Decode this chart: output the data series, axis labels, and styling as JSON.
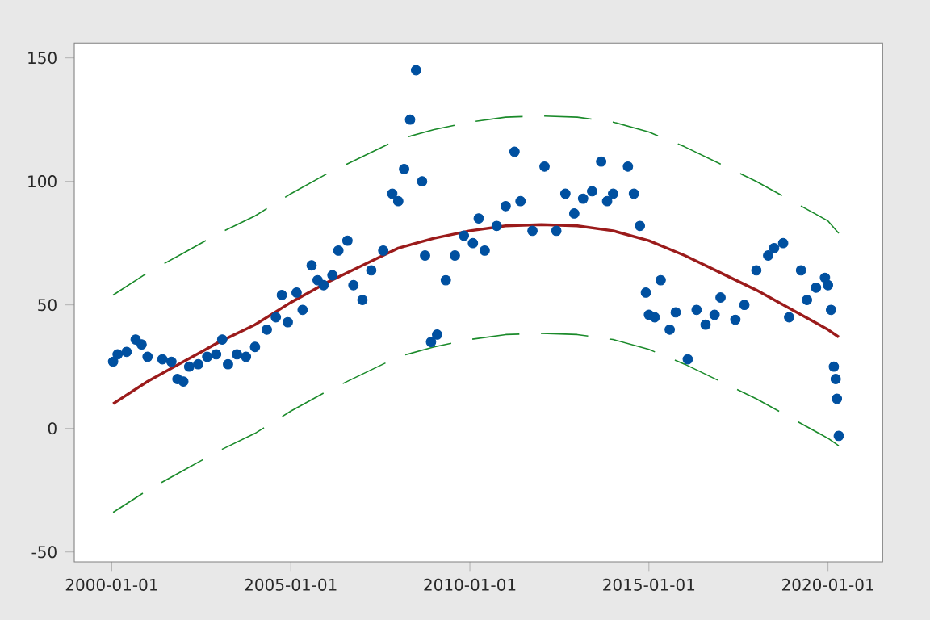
{
  "chart_data": {
    "type": "scatter",
    "xlim": [
      "1998-12-15",
      "2021-07-12"
    ],
    "ylim": [
      -54,
      156
    ],
    "xticks": [
      "2000-01-01",
      "2005-01-01",
      "2010-01-01",
      "2015-01-01",
      "2020-01-01"
    ],
    "yticks": [
      -50,
      0,
      50,
      100,
      150
    ],
    "series": [
      {
        "type": "scatter",
        "marker": "circle",
        "color": "#0050a0",
        "x": [
          "2000-01-15",
          "2000-03",
          "2000-06",
          "2000-09",
          "2000-11",
          "2001-01",
          "2001-06",
          "2001-09",
          "2001-11",
          "2002-01",
          "2002-03",
          "2002-06",
          "2002-09",
          "2002-12",
          "2003-02",
          "2003-04",
          "2003-07",
          "2003-10",
          "2004-01",
          "2004-05",
          "2004-08",
          "2004-10",
          "2004-12",
          "2005-03",
          "2005-05",
          "2005-08",
          "2005-10",
          "2005-12",
          "2006-03",
          "2006-05",
          "2006-08",
          "2006-10",
          "2007-01",
          "2007-04",
          "2007-08",
          "2007-11",
          "2008-01",
          "2008-03",
          "2008-05",
          "2008-07",
          "2008-09",
          "2008-10",
          "2008-12",
          "2009-02",
          "2009-05",
          "2009-08",
          "2009-11",
          "2010-02",
          "2010-04",
          "2010-06",
          "2010-10",
          "2011-01",
          "2011-04",
          "2011-06",
          "2011-10",
          "2012-02",
          "2012-06",
          "2012-09",
          "2012-12",
          "2013-03",
          "2013-06",
          "2013-09",
          "2013-11",
          "2014-01",
          "2014-06",
          "2014-08",
          "2014-10",
          "2014-12",
          "2015-01",
          "2015-03",
          "2015-05",
          "2015-08",
          "2015-10",
          "2016-02",
          "2016-05",
          "2016-08",
          "2016-11",
          "2017-01",
          "2017-06",
          "2017-09",
          "2018-01",
          "2018-05",
          "2018-07",
          "2018-10",
          "2018-12",
          "2019-04",
          "2019-06",
          "2019-09",
          "2019-12",
          "2020-01",
          "2020-02",
          "2020-03",
          "2020-03-20",
          "2020-04",
          "2020-04-20"
        ],
        "values": [
          27,
          30,
          31,
          36,
          34,
          29,
          28,
          27,
          20,
          19,
          25,
          26,
          29,
          30,
          36,
          26,
          30,
          29,
          33,
          40,
          45,
          54,
          43,
          55,
          48,
          66,
          60,
          58,
          62,
          72,
          76,
          58,
          52,
          64,
          72,
          95,
          92,
          105,
          125,
          145,
          100,
          70,
          35,
          38,
          60,
          70,
          78,
          75,
          85,
          72,
          82,
          90,
          112,
          92,
          80,
          106,
          80,
          95,
          87,
          93,
          96,
          108,
          92,
          95,
          106,
          95,
          82,
          55,
          46,
          45,
          60,
          40,
          47,
          28,
          48,
          42,
          46,
          53,
          44,
          50,
          64,
          70,
          73,
          75,
          45,
          64,
          52,
          57,
          61,
          58,
          48,
          25,
          20,
          12,
          -3
        ]
      },
      {
        "type": "line",
        "marker": "none",
        "line_style": "solid",
        "color": "#9b1b1b",
        "x": [
          "2000-01-15",
          "2001-01",
          "2002-01",
          "2003-01",
          "2004-01",
          "2005-01",
          "2006-01",
          "2007-01",
          "2008-01",
          "2009-01",
          "2010-01",
          "2011-01",
          "2012-01",
          "2013-01",
          "2014-01",
          "2015-01",
          "2016-01",
          "2017-01",
          "2018-01",
          "2019-01",
          "2020-01",
          "2020-04-20"
        ],
        "values": [
          10,
          19,
          27,
          35,
          42,
          51,
          59,
          66,
          73,
          77,
          80,
          82,
          82.5,
          82,
          80,
          76,
          70,
          63,
          56,
          48,
          40,
          37
        ]
      },
      {
        "type": "line",
        "marker": "none",
        "line_style": "dashed",
        "color": "#1a8a2a",
        "x": [
          "2000-01-15",
          "2001-01",
          "2002-01",
          "2003-01",
          "2004-01",
          "2005-01",
          "2006-01",
          "2007-01",
          "2008-01",
          "2009-01",
          "2010-01",
          "2011-01",
          "2012-01",
          "2013-01",
          "2014-01",
          "2015-01",
          "2016-01",
          "2017-01",
          "2018-01",
          "2019-01",
          "2020-01",
          "2020-04-20"
        ],
        "values": [
          54,
          63,
          71,
          79,
          86,
          95,
          103,
          110,
          117,
          121,
          124,
          126,
          126.5,
          126,
          124,
          120,
          114,
          107,
          100,
          92,
          84,
          79
        ]
      },
      {
        "type": "line",
        "marker": "none",
        "line_style": "dashed",
        "color": "#1a8a2a",
        "x": [
          "2000-01-15",
          "2001-01",
          "2002-01",
          "2003-01",
          "2004-01",
          "2005-01",
          "2006-01",
          "2007-01",
          "2008-01",
          "2009-01",
          "2010-01",
          "2011-01",
          "2012-01",
          "2013-01",
          "2014-01",
          "2015-01",
          "2016-01",
          "2017-01",
          "2018-01",
          "2019-01",
          "2020-01",
          "2020-04-20"
        ],
        "values": [
          -34,
          -25,
          -17,
          -9,
          -2,
          7,
          15,
          22,
          29,
          33,
          36,
          38,
          38.5,
          38,
          36,
          32,
          26,
          19,
          12,
          4,
          -4,
          -7
        ]
      }
    ]
  }
}
